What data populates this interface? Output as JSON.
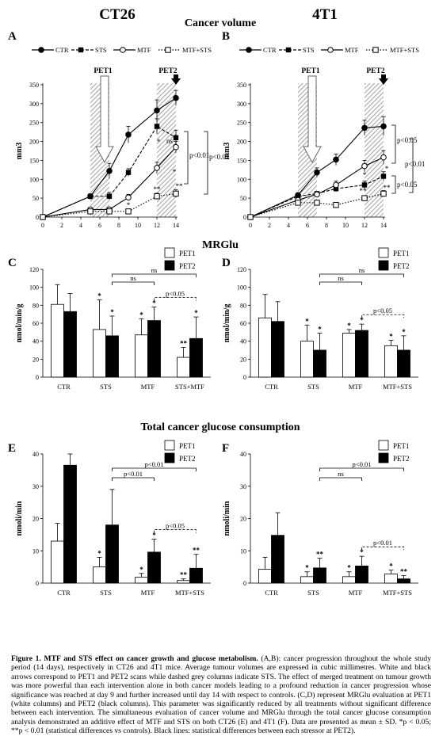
{
  "headings": {
    "left": "CT26",
    "center": "Cancer volume",
    "right": "4T1",
    "mrglu": "MRGlu",
    "tgc": "Total cancer glucose consumption"
  },
  "chart_data": [
    {
      "panel": "A",
      "type": "line",
      "title": "",
      "ylabel": "mm3",
      "xlabel": "",
      "x": [
        0,
        5,
        7,
        9,
        12,
        14
      ],
      "xticks": [
        0,
        2,
        4,
        6,
        8,
        10,
        12,
        14
      ],
      "xlim": [
        0,
        14
      ],
      "ylim": [
        0,
        350
      ],
      "yticks": [
        0,
        50,
        100,
        150,
        200,
        250,
        300,
        350
      ],
      "grid": false,
      "legend_position": "top",
      "shaded_days": [
        [
          5,
          7
        ],
        [
          12,
          14
        ]
      ],
      "arrows": [
        {
          "label": "PET1",
          "day": 6.5,
          "style": "white"
        },
        {
          "label": "PET2",
          "day": 14,
          "style": "black"
        }
      ],
      "series": [
        {
          "name": "CTR",
          "marker": "filled-circle",
          "line": "solid",
          "values": [
            0,
            55,
            122,
            218,
            282,
            315
          ],
          "err": [
            0,
            5,
            20,
            22,
            28,
            20
          ]
        },
        {
          "name": "STS",
          "marker": "filled-square",
          "line": "dashed",
          "values": [
            0,
            55,
            55,
            118,
            240,
            210
          ],
          "err": [
            0,
            5,
            10,
            10,
            20,
            20
          ]
        },
        {
          "name": "MTF",
          "marker": "open-circle",
          "line": "solid",
          "values": [
            0,
            20,
            20,
            52,
            130,
            185
          ],
          "err": [
            0,
            3,
            5,
            8,
            15,
            15
          ]
        },
        {
          "name": "MTF+STS",
          "marker": "open-square",
          "line": "dotted",
          "values": [
            0,
            15,
            15,
            15,
            55,
            62
          ],
          "err": [
            0,
            3,
            3,
            3,
            8,
            10
          ]
        }
      ],
      "annotations": [
        "ns",
        "p<0.01",
        "p<0.01",
        "*",
        "*",
        "*",
        "**",
        "**"
      ]
    },
    {
      "panel": "B",
      "type": "line",
      "title": "",
      "ylabel": "mm3",
      "xlabel": "",
      "x": [
        0,
        5,
        7,
        9,
        12,
        14
      ],
      "xticks": [
        0,
        2,
        4,
        6,
        8,
        10,
        12,
        14
      ],
      "xlim": [
        0,
        14
      ],
      "ylim": [
        0,
        350
      ],
      "yticks": [
        0,
        50,
        100,
        150,
        200,
        250,
        300,
        350
      ],
      "grid": false,
      "legend_position": "top",
      "shaded_days": [
        [
          5,
          7
        ],
        [
          12,
          14
        ]
      ],
      "arrows": [
        {
          "label": "PET1",
          "day": 6.5,
          "style": "white"
        },
        {
          "label": "PET2",
          "day": 14,
          "style": "black"
        }
      ],
      "series": [
        {
          "name": "CTR",
          "marker": "filled-circle",
          "line": "solid",
          "values": [
            0,
            58,
            118,
            152,
            236,
            240
          ],
          "err": [
            0,
            5,
            12,
            15,
            20,
            25
          ]
        },
        {
          "name": "STS",
          "marker": "filled-square",
          "line": "dashed",
          "values": [
            0,
            55,
            62,
            75,
            85,
            108
          ],
          "err": [
            0,
            5,
            5,
            8,
            10,
            12
          ]
        },
        {
          "name": "MTF",
          "marker": "open-circle",
          "line": "solid",
          "values": [
            0,
            45,
            60,
            85,
            135,
            158
          ],
          "err": [
            0,
            4,
            6,
            10,
            15,
            18
          ]
        },
        {
          "name": "MTF+STS",
          "marker": "open-square",
          "line": "dotted",
          "values": [
            0,
            38,
            38,
            32,
            50,
            62
          ],
          "err": [
            0,
            4,
            5,
            5,
            6,
            8
          ]
        }
      ],
      "annotations": [
        "p<0.05",
        "p<0.01",
        "p<0.05",
        "*",
        "*",
        "**",
        "**"
      ]
    },
    {
      "panel": "C",
      "type": "bar",
      "title": "",
      "ylabel": "nmol/min/g",
      "xlabel": "",
      "categories": [
        "CTR",
        "STS",
        "MTF",
        "STS+MTF"
      ],
      "ylim": [
        0,
        120
      ],
      "yticks": [
        0,
        20,
        40,
        60,
        80,
        100,
        120
      ],
      "grid": false,
      "legend_position": "top-right",
      "series": [
        {
          "name": "PET1",
          "color": "#ffffff",
          "values": [
            81,
            53,
            47,
            22
          ],
          "err": [
            22,
            33,
            18,
            11
          ],
          "stars": [
            "",
            "*",
            "*",
            "**"
          ]
        },
        {
          "name": "PET2",
          "color": "#000000",
          "values": [
            73,
            46,
            63,
            43
          ],
          "err": [
            20,
            22,
            15,
            24
          ],
          "stars": [
            "",
            "*",
            "*",
            "*"
          ]
        }
      ],
      "comparisons": [
        {
          "label": "ns",
          "from": 1,
          "to": 2
        },
        {
          "label": "ns",
          "from": 1,
          "to": 3
        },
        {
          "label": "p<0.05",
          "from": 2,
          "to": 3
        }
      ]
    },
    {
      "panel": "D",
      "type": "bar",
      "title": "",
      "ylabel": "nmol/min/g",
      "xlabel": "",
      "categories": [
        "CTR",
        "STS",
        "MTF",
        "MTF+STS"
      ],
      "ylim": [
        0,
        120
      ],
      "yticks": [
        0,
        20,
        40,
        60,
        80,
        100,
        120
      ],
      "grid": false,
      "legend_position": "top-right",
      "series": [
        {
          "name": "PET1",
          "color": "#ffffff",
          "values": [
            66,
            40,
            49,
            35
          ],
          "err": [
            26,
            18,
            4,
            6
          ],
          "stars": [
            "",
            "*",
            "*",
            "*"
          ]
        },
        {
          "name": "PET2",
          "color": "#000000",
          "values": [
            62,
            30,
            52,
            30
          ],
          "err": [
            22,
            19,
            7,
            16
          ],
          "stars": [
            "",
            "*",
            "*",
            "*"
          ]
        }
      ],
      "comparisons": [
        {
          "label": "ns",
          "from": 1,
          "to": 2
        },
        {
          "label": "ns",
          "from": 1,
          "to": 3
        },
        {
          "label": "p<0.05",
          "from": 2,
          "to": 3
        }
      ]
    },
    {
      "panel": "E",
      "type": "bar",
      "title": "",
      "ylabel": "nmoli/min",
      "xlabel": "",
      "categories": [
        "CTR",
        "STS",
        "MTF",
        "MTF+STS"
      ],
      "ylim": [
        0,
        40
      ],
      "yticks": [
        0,
        10,
        20,
        30,
        40
      ],
      "grid": false,
      "legend_position": "top-right",
      "series": [
        {
          "name": "PET1",
          "color": "#ffffff",
          "values": [
            13,
            5,
            1.8,
            0.8
          ],
          "err": [
            5.5,
            3,
            1.2,
            0.5
          ],
          "stars": [
            "",
            "*",
            "*",
            "**"
          ]
        },
        {
          "name": "PET2",
          "color": "#000000",
          "values": [
            36.5,
            18,
            9.6,
            4.6
          ],
          "err": [
            3.5,
            11,
            4,
            4.3
          ],
          "stars": [
            "",
            "",
            "*",
            "**"
          ]
        }
      ],
      "comparisons": [
        {
          "label": "p<0.01",
          "from": 1,
          "to": 2
        },
        {
          "label": "p<0.01",
          "from": 1,
          "to": 3
        },
        {
          "label": "p<0.05",
          "from": 2,
          "to": 3
        }
      ]
    },
    {
      "panel": "F",
      "type": "bar",
      "title": "",
      "ylabel": "nmoli/min",
      "xlabel": "",
      "categories": [
        "CTR",
        "STS",
        "MTF",
        "MTF+STS"
      ],
      "ylim": [
        0,
        40
      ],
      "yticks": [
        0,
        10,
        20,
        30,
        40
      ],
      "grid": false,
      "legend_position": "top-right",
      "series": [
        {
          "name": "PET1",
          "color": "#ffffff",
          "values": [
            4.3,
            2,
            2,
            2.8
          ],
          "err": [
            3.7,
            1.5,
            1.5,
            1.2
          ],
          "stars": [
            "",
            "*",
            "*",
            "*"
          ]
        },
        {
          "name": "PET2",
          "color": "#000000",
          "values": [
            14.8,
            4.7,
            5.3,
            1.3
          ],
          "err": [
            7,
            3,
            3,
            1
          ],
          "stars": [
            "",
            "**",
            "*",
            "**"
          ]
        }
      ],
      "comparisons": [
        {
          "label": "ns",
          "from": 1,
          "to": 2
        },
        {
          "label": "p<0.01",
          "from": 1,
          "to": 3
        },
        {
          "label": "p<0.01",
          "from": 2,
          "to": 3
        }
      ]
    }
  ],
  "caption": {
    "title": "Figure 1.  MTF and STS effect on cancer growth and glucose metabolism.",
    "text": " (A,B): cancer progression throughout the whole study period (14 days), respectively in CT26 and 4T1 mice. Average tumour volumes are expressed in cubic millimetres. White and black arrows correspond to PET1 and PET2 scans while dashed grey columns indicate STS. The effect of merged treatment on tumour growth was more powerful than each intervention alone in both cancer models leading to a profound reduction in cancer progression whose significance was reached at day 9 and further increased until day 14 with respect to controls. (C,D) represent MRGlu evaluation at PET1 (white columns) and PET2 (black columns). This parameter was significantly reduced by all treatments without significant difference between each intervention. The simultaneous evaluation of cancer volume and MRGlu through the total cancer glucose consumption analysis demonstrated an additive effect of MTF and STS on both CT26 (E) and 4T1 (F). Data are presented as mean ± SD. *p < 0.05; **p < 0.01 (statistical differences vs controls). Black lines: statistical differences between each stressor at PET2)."
  }
}
